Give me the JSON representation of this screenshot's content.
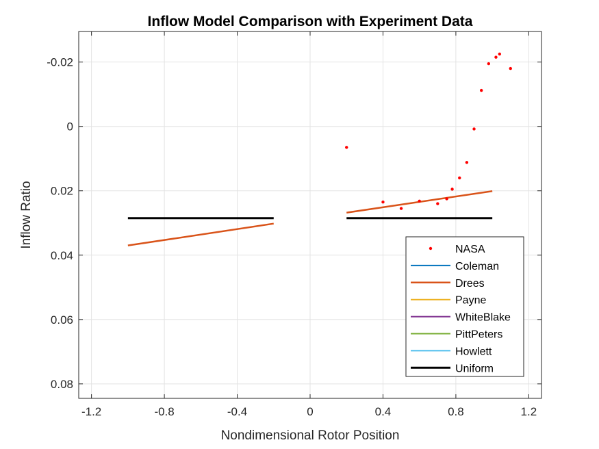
{
  "chart_data": {
    "type": "line",
    "title": "Inflow Model Comparison with Experiment Data",
    "xlabel": "Nondimensional Rotor Position",
    "ylabel": "Inflow Ratio",
    "xlim": [
      -1.27,
      1.27
    ],
    "ylim": [
      -0.0295,
      0.0845
    ],
    "y_reversed": true,
    "grid": true,
    "legend_position": "bottom-right",
    "x_ticks": [
      -1.2,
      -0.8,
      -0.4,
      0,
      0.4,
      0.8,
      1.2
    ],
    "x_tick_labels": [
      "-1.2",
      "-0.8",
      "-0.4",
      "0",
      "0.4",
      "0.8",
      "1.2"
    ],
    "y_ticks": [
      -0.02,
      0,
      0.02,
      0.04,
      0.06,
      0.08
    ],
    "y_tick_labels": [
      "-0.02",
      "0",
      "0.02",
      "0.04",
      "0.06",
      "0.08"
    ],
    "series": [
      {
        "name": "NASA",
        "kind": "scatter",
        "color": "#ff0000",
        "points": [
          [
            0.2,
            0.0065
          ],
          [
            0.4,
            0.0235
          ],
          [
            0.5,
            0.0255
          ],
          [
            0.6,
            0.0232
          ],
          [
            0.7,
            0.024
          ],
          [
            0.75,
            0.0225
          ],
          [
            0.78,
            0.0195
          ],
          [
            0.82,
            0.016
          ],
          [
            0.86,
            0.0112
          ],
          [
            0.9,
            0.0008
          ],
          [
            0.94,
            -0.0112
          ],
          [
            0.98,
            -0.0195
          ],
          [
            1.02,
            -0.0215
          ],
          [
            1.04,
            -0.0225
          ],
          [
            1.1,
            -0.018
          ]
        ]
      },
      {
        "name": "Coleman",
        "kind": "line",
        "color": "#0072bd",
        "width": 2,
        "segments": []
      },
      {
        "name": "Drees",
        "kind": "line",
        "color": "#d95319",
        "width": 2.5,
        "segments": [
          [
            [
              -1.0,
              0.037
            ],
            [
              -0.2,
              0.0302
            ]
          ],
          [
            [
              0.2,
              0.0268
            ],
            [
              1.0,
              0.0201
            ]
          ]
        ]
      },
      {
        "name": "Payne",
        "kind": "line",
        "color": "#edb120",
        "width": 2,
        "segments": []
      },
      {
        "name": "WhiteBlake",
        "kind": "line",
        "color": "#7e2f8e",
        "width": 2,
        "segments": []
      },
      {
        "name": "PittPeters",
        "kind": "line",
        "color": "#77ac30",
        "width": 2,
        "segments": []
      },
      {
        "name": "Howlett",
        "kind": "line",
        "color": "#4dbeee",
        "width": 2,
        "segments": []
      },
      {
        "name": "Uniform",
        "kind": "line",
        "color": "#000000",
        "width": 3,
        "segments": [
          [
            [
              -1.0,
              0.0285
            ],
            [
              -0.2,
              0.0285
            ]
          ],
          [
            [
              0.2,
              0.0285
            ],
            [
              1.0,
              0.0285
            ]
          ]
        ]
      }
    ]
  }
}
